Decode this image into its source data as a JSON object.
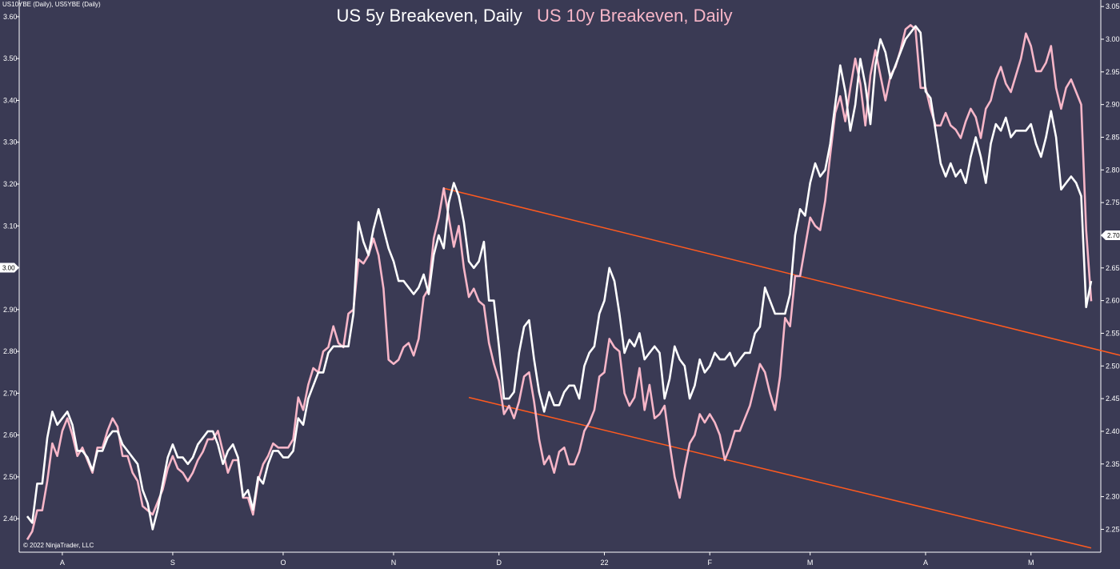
{
  "instrument_label": "US10YBE (Daily), US5YBE (Daily)",
  "copyright": "© 2022 NinjaTrader, LLC",
  "colors": {
    "background": "#3a3a54",
    "axis": "#ffffff",
    "series_5y": "#ffffff",
    "series_10y": "#f7b6c8",
    "trendline": "#ff5a1f"
  },
  "chart_data": {
    "type": "line",
    "title_parts": [
      "US 5y Breakeven, Daily",
      "US 10y Breakeven, Daily"
    ],
    "x_tick_labels": [
      "A",
      "S",
      "O",
      "N",
      "D",
      "22",
      "F",
      "M",
      "A",
      "M"
    ],
    "left_axis": {
      "ylim": [
        2.32,
        3.64
      ],
      "ticks": [
        "2.40",
        "2.50",
        "2.60",
        "2.70",
        "2.80",
        "2.90",
        "3.00",
        "3.10",
        "3.20",
        "3.30",
        "3.40",
        "3.50",
        "3.60"
      ],
      "marker": "3.00",
      "series": "US 10y Breakeven, Daily"
    },
    "right_axis": {
      "ylim": [
        2.215,
        3.06
      ],
      "ticks": [
        "2.25",
        "2.30",
        "2.35",
        "2.40",
        "2.45",
        "2.50",
        "2.55",
        "2.60",
        "2.65",
        "2.70",
        "2.75",
        "2.80",
        "2.85",
        "2.90",
        "2.95",
        "3.00",
        "3.05"
      ],
      "marker": "2.70",
      "series": "US 5y Breakeven, Daily"
    },
    "series": [
      {
        "name": "US 5y Breakeven, Daily",
        "axis": "right",
        "values": [
          2.27,
          2.26,
          2.32,
          2.32,
          2.39,
          2.43,
          2.41,
          2.42,
          2.43,
          2.41,
          2.37,
          2.37,
          2.36,
          2.34,
          2.37,
          2.37,
          2.39,
          2.4,
          2.4,
          2.38,
          2.37,
          2.36,
          2.35,
          2.31,
          2.29,
          2.25,
          2.28,
          2.32,
          2.36,
          2.38,
          2.36,
          2.36,
          2.35,
          2.36,
          2.38,
          2.39,
          2.4,
          2.4,
          2.38,
          2.35,
          2.37,
          2.38,
          2.36,
          2.3,
          2.31,
          2.28,
          2.33,
          2.32,
          2.35,
          2.37,
          2.37,
          2.36,
          2.36,
          2.37,
          2.42,
          2.41,
          2.45,
          2.47,
          2.49,
          2.49,
          2.52,
          2.53,
          2.53,
          2.53,
          2.53,
          2.58,
          2.72,
          2.69,
          2.67,
          2.71,
          2.74,
          2.71,
          2.68,
          2.66,
          2.63,
          2.63,
          2.62,
          2.61,
          2.62,
          2.64,
          2.61,
          2.67,
          2.7,
          2.68,
          2.75,
          2.78,
          2.76,
          2.72,
          2.66,
          2.65,
          2.66,
          2.69,
          2.6,
          2.6,
          2.53,
          2.45,
          2.45,
          2.46,
          2.52,
          2.56,
          2.57,
          2.51,
          2.46,
          2.43,
          2.46,
          2.44,
          2.44,
          2.46,
          2.47,
          2.47,
          2.45,
          2.5,
          2.52,
          2.53,
          2.58,
          2.6,
          2.65,
          2.63,
          2.58,
          2.52,
          2.54,
          2.53,
          2.55,
          2.51,
          2.52,
          2.53,
          2.52,
          2.45,
          2.48,
          2.53,
          2.51,
          2.5,
          2.45,
          2.47,
          2.51,
          2.49,
          2.5,
          2.52,
          2.51,
          2.51,
          2.52,
          2.5,
          2.51,
          2.52,
          2.52,
          2.55,
          2.56,
          2.62,
          2.6,
          2.58,
          2.58,
          2.58,
          2.61,
          2.7,
          2.74,
          2.73,
          2.78,
          2.81,
          2.79,
          2.8,
          2.84,
          2.9,
          2.96,
          2.92,
          2.86,
          2.9,
          2.97,
          2.93,
          2.87,
          2.96,
          3.0,
          2.98,
          2.94,
          2.96,
          2.98,
          3.0,
          3.01,
          3.02,
          3.01,
          2.92,
          2.91,
          2.86,
          2.81,
          2.79,
          2.81,
          2.79,
          2.8,
          2.78,
          2.82,
          2.85,
          2.82,
          2.78,
          2.84,
          2.87,
          2.86,
          2.88,
          2.85,
          2.86,
          2.86,
          2.86,
          2.87,
          2.84,
          2.82,
          2.85,
          2.89,
          2.85,
          2.77,
          2.78,
          2.79,
          2.78,
          2.76,
          2.59,
          2.63
        ]
      },
      {
        "name": "US 10y Breakeven, Daily",
        "axis": "left",
        "values": [
          2.35,
          2.37,
          2.42,
          2.42,
          2.49,
          2.58,
          2.55,
          2.61,
          2.64,
          2.6,
          2.55,
          2.57,
          2.54,
          2.51,
          2.57,
          2.57,
          2.61,
          2.64,
          2.62,
          2.55,
          2.55,
          2.51,
          2.49,
          2.43,
          2.42,
          2.41,
          2.44,
          2.47,
          2.52,
          2.55,
          2.52,
          2.51,
          2.49,
          2.51,
          2.54,
          2.56,
          2.59,
          2.59,
          2.61,
          2.56,
          2.51,
          2.54,
          2.54,
          2.45,
          2.45,
          2.41,
          2.49,
          2.53,
          2.55,
          2.58,
          2.57,
          2.57,
          2.57,
          2.59,
          2.69,
          2.66,
          2.72,
          2.76,
          2.75,
          2.8,
          2.81,
          2.86,
          2.82,
          2.81,
          2.89,
          2.9,
          3.02,
          3.01,
          3.03,
          3.07,
          3.03,
          2.95,
          2.78,
          2.77,
          2.78,
          2.81,
          2.82,
          2.79,
          2.83,
          2.93,
          2.95,
          3.07,
          3.12,
          3.19,
          3.12,
          3.05,
          3.1,
          3.0,
          2.93,
          2.95,
          2.92,
          2.91,
          2.82,
          2.77,
          2.73,
          2.65,
          2.67,
          2.64,
          2.68,
          2.74,
          2.75,
          2.68,
          2.59,
          2.53,
          2.55,
          2.51,
          2.56,
          2.57,
          2.53,
          2.53,
          2.56,
          2.61,
          2.63,
          2.66,
          2.74,
          2.75,
          2.83,
          2.81,
          2.8,
          2.7,
          2.67,
          2.69,
          2.76,
          2.66,
          2.72,
          2.64,
          2.65,
          2.67,
          2.58,
          2.5,
          2.45,
          2.52,
          2.58,
          2.6,
          2.65,
          2.63,
          2.65,
          2.63,
          2.6,
          2.54,
          2.57,
          2.61,
          2.61,
          2.64,
          2.67,
          2.72,
          2.77,
          2.75,
          2.7,
          2.66,
          2.74,
          2.88,
          2.86,
          2.98,
          2.98,
          3.05,
          3.12,
          3.1,
          3.09,
          3.16,
          3.27,
          3.37,
          3.41,
          3.35,
          3.43,
          3.5,
          3.44,
          3.34,
          3.46,
          3.52,
          3.46,
          3.4,
          3.46,
          3.48,
          3.52,
          3.57,
          3.58,
          3.57,
          3.43,
          3.43,
          3.38,
          3.34,
          3.34,
          3.37,
          3.34,
          3.33,
          3.31,
          3.35,
          3.38,
          3.36,
          3.31,
          3.38,
          3.4,
          3.45,
          3.48,
          3.44,
          3.42,
          3.46,
          3.5,
          3.56,
          3.53,
          3.47,
          3.47,
          3.49,
          3.53,
          3.43,
          3.38,
          3.43,
          3.45,
          3.42,
          3.39,
          3.09,
          2.92
        ]
      }
    ],
    "trendlines": [
      {
        "start": {
          "x_index": 83,
          "value_left": 3.19
        },
        "end": {
          "x_index": 218,
          "value_left": 2.79
        }
      },
      {
        "start": {
          "x_index": 88,
          "value_left": 2.69
        },
        "end": {
          "x_index": 212,
          "value_left": 2.33
        }
      }
    ]
  }
}
